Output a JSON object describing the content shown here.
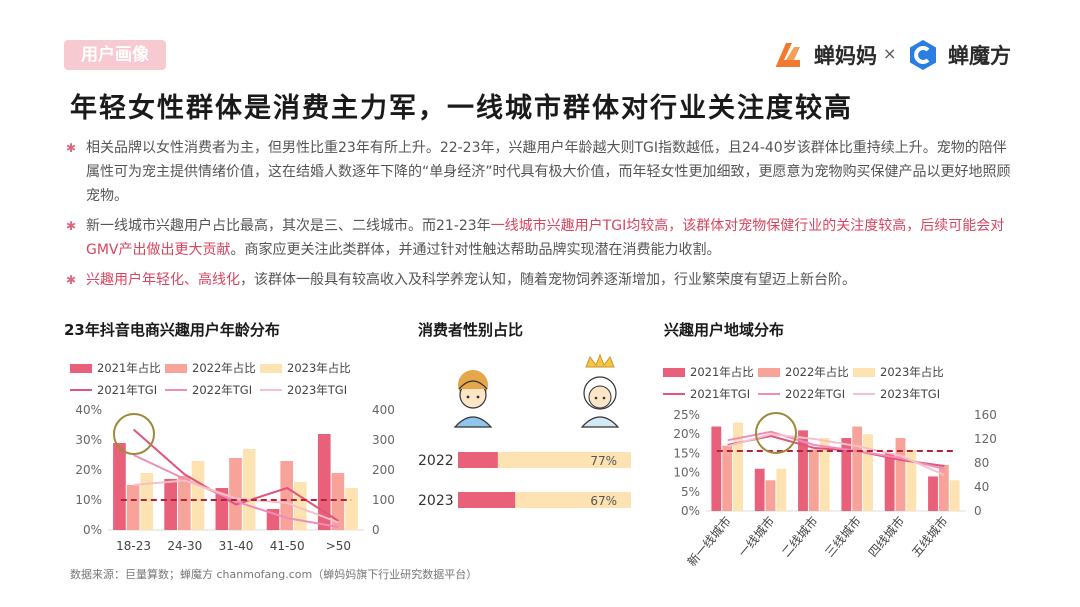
{
  "header": {
    "tag": "用户画像",
    "brand1": "蝉妈妈",
    "times": "×",
    "brand2": "蝉魔方"
  },
  "title": "年轻女性群体是消费主力军，一线城市群体对行业关注度较高",
  "bullets": {
    "b1": "相关品牌以女性消费者为主，但男性比重23年有所上升。22-23年，兴趣用户年龄越大则TGI指数越低，且24-40岁该群体比重持续上升。宠物的陪伴属性可为宠主提供情绪价值，这在结婚人数逐年下降的“单身经济”时代具有极大价值，而年轻女性更加细致，更愿意为宠物购买保健产品以更好地照顾宠物。",
    "b2a": "新一线城市兴趣用户占比最高，其次是三、二线城市。而21-23年",
    "b2b": "一线城市兴趣用户TGI均较高，该群体对宠物保健行业的关注度较高，后续可能会对GMV产出做出更大贡献",
    "b2c": "。商家应更关注此类群体，并通过针对性触达帮助品牌实现潜在消费能力收割。",
    "b3a": "兴趣用户年轻化、高线化",
    "b3b": "，该群体一般具有较高收入及科学养宠认知，随着宠物饲养逐渐增加，行业繁荣度有望迈上新台阶。"
  },
  "legend": {
    "s2021": "2021年占比",
    "s2022": "2022年占比",
    "s2023": "2023年占比",
    "t2021": "2021年TGI",
    "t2022": "2022年TGI",
    "t2023": "2023年TGI"
  },
  "colors": {
    "c2021": "#e8607a",
    "c2022": "#f7a39a",
    "c2023": "#fde2b2",
    "t2021": "#e0557a",
    "t2022": "#f08cbc",
    "t2023": "#f6c0c8",
    "ref": "#b3243c",
    "gender_male": "#e8607a",
    "gender_bg": "#fde2b2",
    "circle": "#9c8a3a"
  },
  "source": "数据来源：巨量算数；蝉魔方  chanmofang.com（蝉妈妈旗下行业研究数据平台）",
  "chart_data": [
    {
      "type": "bar",
      "title": "23年抖音电商兴趣用户年龄分布",
      "categories": [
        "18-23",
        "24-30",
        "31-40",
        "41-50",
        ">50"
      ],
      "ylim": [
        0,
        40
      ],
      "y_ticks": [
        "0%",
        "10%",
        "20%",
        "30%",
        "40%"
      ],
      "y2lim": [
        0,
        400
      ],
      "y2_ticks": [
        "0",
        "100",
        "200",
        "300",
        "400"
      ],
      "series": [
        {
          "name": "2021年占比",
          "values": [
            29,
            17,
            14,
            7,
            32
          ]
        },
        {
          "name": "2022年占比",
          "values": [
            15,
            18,
            24,
            23,
            19
          ]
        },
        {
          "name": "2023年占比",
          "values": [
            19,
            23,
            27,
            16,
            14
          ]
        }
      ],
      "lines": [
        {
          "name": "2021年TGI",
          "values": [
            335,
            185,
            85,
            140,
            30
          ]
        },
        {
          "name": "2022年TGI",
          "values": [
            250,
            170,
            95,
            40,
            10
          ]
        },
        {
          "name": "2023年TGI",
          "values": [
            150,
            165,
            105,
            90,
            25
          ]
        }
      ],
      "reference_line": 100
    },
    {
      "type": "bar",
      "title": "消费者性别占比",
      "categories": [
        "2022",
        "2023"
      ],
      "values": [
        77,
        67
      ],
      "labels": [
        "77%",
        "67%"
      ]
    },
    {
      "type": "bar",
      "title": "兴趣用户地域分布",
      "categories": [
        "新一线城市",
        "一线城市",
        "二线城市",
        "三线城市",
        "四线城市",
        "五线城市"
      ],
      "ylim": [
        0,
        25
      ],
      "y_ticks": [
        "0%",
        "5%",
        "10%",
        "15%",
        "20%",
        "25%"
      ],
      "y2lim": [
        0,
        160
      ],
      "y2_ticks": [
        "0",
        "40",
        "80",
        "120",
        "160"
      ],
      "series": [
        {
          "name": "2021年占比",
          "values": [
            22,
            11,
            21,
            19,
            15,
            9
          ]
        },
        {
          "name": "2022年占比",
          "values": [
            17,
            8,
            16,
            22,
            19,
            12
          ]
        },
        {
          "name": "2023年占比",
          "values": [
            23,
            11,
            19,
            20,
            16,
            8
          ]
        }
      ],
      "lines": [
        {
          "name": "2021年TGI",
          "values": [
            110,
            125,
            105,
            100,
            85,
            75
          ]
        },
        {
          "name": "2022年TGI",
          "values": [
            118,
            132,
            110,
            100,
            88,
            70
          ]
        },
        {
          "name": "2023年TGI",
          "values": [
            108,
            128,
            120,
            108,
            92,
            60
          ]
        }
      ],
      "reference_line": 100
    }
  ]
}
